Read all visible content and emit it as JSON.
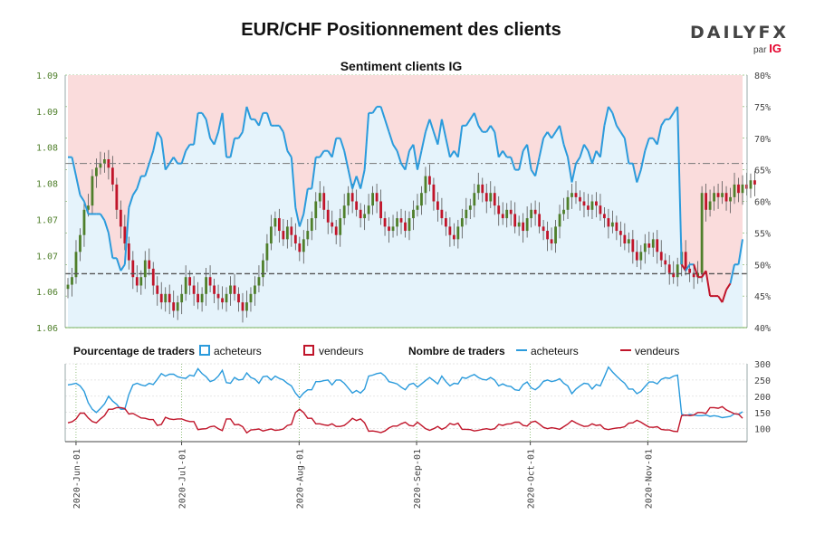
{
  "header": {
    "title": "EUR/CHF Positionnement des clients",
    "brand": "DAILYFX",
    "brand_sub": "par",
    "brand_ig": "IG"
  },
  "legend": {
    "pct_label": "Pourcentage de traders",
    "count_label": "Nombre de traders",
    "buyers": "acheteurs",
    "sellers": "vendeurs"
  },
  "colors": {
    "buyers": "#2b9bdc",
    "sellers": "#c0152a",
    "buy_fill": "#e5f3fb",
    "sell_fill": "#fadcdc",
    "candle_up": "#4f7f2b",
    "candle_down": "#c0152a",
    "grid": "#4f9a2b"
  },
  "chart_data": [
    {
      "type": "candlestick+area",
      "title": "Sentiment clients IG",
      "left_axis_ticks": [
        "1.06",
        "1.06",
        "1.07",
        "1.07",
        "1.08",
        "1.08",
        "1.09",
        "1.09"
      ],
      "left_ylim": [
        1.06,
        1.09
      ],
      "right_axis_ticks": [
        "40%",
        "45%",
        "50%",
        "55%",
        "60%",
        "65%",
        "70%",
        "75%",
        "80%"
      ],
      "right_ylim": [
        40,
        80
      ],
      "x_ticks": [
        "2020-Jun-01",
        "2020-Jul-01",
        "2020-Aug-01",
        "2020-Sep-01",
        "2020-Oct-01",
        "2020-Nov-01"
      ],
      "x_range": [
        "2020-May-30",
        "2020-Nov-25"
      ],
      "reference_lines": {
        "price": 1.0664,
        "percent": 66
      },
      "price_close": [
        1.0651,
        1.066,
        1.069,
        1.071,
        1.074,
        1.0745,
        1.078,
        1.079,
        1.0795,
        1.08,
        1.079,
        1.077,
        1.074,
        1.072,
        1.07,
        1.068,
        1.066,
        1.065,
        1.066,
        1.068,
        1.067,
        1.065,
        1.064,
        1.063,
        1.064,
        1.063,
        1.062,
        1.063,
        1.064,
        1.066,
        1.065,
        1.064,
        1.063,
        1.064,
        1.066,
        1.065,
        1.064,
        1.0635,
        1.063,
        1.064,
        1.065,
        1.064,
        1.063,
        1.062,
        1.063,
        1.064,
        1.065,
        1.066,
        1.068,
        1.07,
        1.072,
        1.073,
        1.0715,
        1.0705,
        1.072,
        1.071,
        1.07,
        1.069,
        1.0705,
        1.0715,
        1.073,
        1.075,
        1.076,
        1.074,
        1.0725,
        1.072,
        1.071,
        1.073,
        1.0745,
        1.076,
        1.075,
        1.074,
        1.073,
        1.0735,
        1.0745,
        1.076,
        1.075,
        1.073,
        1.072,
        1.0715,
        1.072,
        1.073,
        1.0725,
        1.0715,
        1.073,
        1.074,
        1.0745,
        1.076,
        1.078,
        1.077,
        1.075,
        1.074,
        1.073,
        1.072,
        1.071,
        1.0705,
        1.072,
        1.073,
        1.074,
        1.0745,
        1.076,
        1.077,
        1.076,
        1.075,
        1.076,
        1.0745,
        1.0735,
        1.073,
        1.074,
        1.0735,
        1.072,
        1.0725,
        1.0715,
        1.073,
        1.074,
        1.0735,
        1.072,
        1.0715,
        1.0705,
        1.07,
        1.072,
        1.0735,
        1.074,
        1.0755,
        1.076,
        1.0755,
        1.075,
        1.0745,
        1.074,
        1.075,
        1.0745,
        1.0735,
        1.073,
        1.072,
        1.0725,
        1.0715,
        1.071,
        1.07,
        1.0705,
        1.069,
        1.068,
        1.069,
        1.07,
        1.0695,
        1.0705,
        1.069,
        1.068,
        1.0675,
        1.0665,
        1.066,
        1.0675,
        1.069,
        1.067,
        1.0665,
        1.066,
        1.0665,
        1.076,
        1.074,
        1.075,
        1.076,
        1.0755,
        1.076,
        1.075,
        1.0755,
        1.077,
        1.076,
        1.077,
        1.0765,
        1.0775,
        1.077
      ],
      "series": [
        {
          "name": "acheteurs",
          "percent": [
            67,
            67,
            64,
            61,
            60,
            58,
            58,
            58,
            58,
            57,
            55,
            51,
            51,
            49,
            50,
            59,
            61,
            62,
            64,
            64,
            66,
            68,
            71,
            70,
            65,
            66,
            67,
            66,
            66,
            68,
            69,
            69,
            74,
            74,
            73,
            70,
            69,
            71,
            74,
            67,
            67,
            70,
            70,
            71,
            75,
            73,
            73,
            72,
            74,
            74,
            72,
            72,
            72,
            71,
            68,
            67,
            59,
            56,
            58,
            62,
            62,
            67,
            67,
            68,
            68,
            67,
            70,
            70,
            68,
            65,
            62,
            64,
            62,
            65,
            74,
            74,
            75,
            75,
            73,
            71,
            69,
            68,
            66,
            65,
            68,
            69,
            65,
            68,
            71,
            73,
            71,
            69,
            73,
            70,
            67,
            68,
            67,
            72,
            72,
            73,
            74,
            72,
            71,
            71,
            72,
            71,
            67,
            68,
            67,
            67,
            65,
            65,
            68,
            69,
            65,
            64,
            67,
            70,
            71,
            70,
            71,
            72,
            69,
            67,
            63,
            66,
            67,
            69,
            68,
            66,
            68,
            67,
            72,
            75,
            74,
            72,
            71,
            70,
            66,
            66,
            63,
            65,
            68,
            70,
            70,
            69,
            72,
            73,
            73,
            74,
            75,
            50,
            49,
            50,
            50,
            48,
            48,
            49,
            45,
            45,
            45,
            44,
            46,
            47,
            50,
            50,
            54
          ]
        },
        {
          "name": "vendeurs"
        }
      ]
    },
    {
      "type": "line",
      "right_axis_ticks": [
        "100",
        "150",
        "200",
        "250",
        "300"
      ],
      "right_ylim": [
        60,
        300
      ],
      "series": [
        {
          "name": "acheteurs",
          "values": [
            235,
            237,
            240,
            232,
            215,
            180,
            160,
            150,
            162,
            176,
            200,
            185,
            175,
            160,
            160,
            205,
            235,
            240,
            235,
            232,
            240,
            236,
            252,
            270,
            262,
            268,
            268,
            260,
            257,
            255,
            265,
            262,
            285,
            270,
            260,
            245,
            250,
            262,
            280,
            242,
            240,
            258,
            250,
            252,
            272,
            258,
            253,
            240,
            260,
            262,
            250,
            262,
            255,
            250,
            240,
            232,
            210,
            195,
            210,
            220,
            220,
            245,
            245,
            248,
            250,
            235,
            250,
            250,
            240,
            225,
            210,
            218,
            210,
            222,
            262,
            265,
            270,
            272,
            262,
            245,
            242,
            238,
            228,
            220,
            236,
            240,
            228,
            238,
            248,
            258,
            248,
            238,
            262,
            245,
            232,
            240,
            238,
            258,
            255,
            262,
            267,
            258,
            252,
            250,
            258,
            250,
            232,
            238,
            232,
            230,
            220,
            218,
            236,
            244,
            226,
            220,
            230,
            246,
            250,
            245,
            248,
            254,
            240,
            232,
            208,
            222,
            232,
            240,
            238,
            222,
            236,
            232,
            260,
            290,
            275,
            262,
            250,
            240,
            222,
            222,
            208,
            215,
            230,
            244,
            244,
            238,
            252,
            257,
            255,
            262,
            265,
            145,
            140,
            144,
            142,
            140,
            140,
            142,
            138,
            140,
            138,
            134,
            136,
            138,
            146,
            144,
            152
          ]
        },
        {
          "name": "vendeurs",
          "values": [
            118,
            121,
            130,
            148,
            148,
            133,
            122,
            118,
            130,
            140,
            160,
            160,
            165,
            165,
            162,
            145,
            147,
            140,
            133,
            132,
            128,
            128,
            110,
            113,
            135,
            130,
            128,
            130,
            130,
            125,
            122,
            122,
            97,
            99,
            100,
            106,
            108,
            100,
            94,
            130,
            130,
            112,
            113,
            106,
            87,
            96,
            97,
            99,
            93,
            96,
            99,
            95,
            96,
            99,
            110,
            113,
            150,
            160,
            150,
            132,
            132,
            115,
            115,
            112,
            110,
            115,
            107,
            107,
            110,
            120,
            132,
            125,
            130,
            118,
            92,
            93,
            91,
            88,
            93,
            102,
            108,
            108,
            115,
            120,
            110,
            108,
            120,
            110,
            100,
            95,
            100,
            107,
            98,
            104,
            116,
            112,
            117,
            98,
            98,
            97,
            93,
            95,
            98,
            100,
            97,
            100,
            113,
            110,
            114,
            115,
            120,
            120,
            110,
            108,
            120,
            123,
            114,
            104,
            100,
            103,
            101,
            98,
            106,
            114,
            125,
            118,
            112,
            107,
            108,
            115,
            110,
            112,
            100,
            97,
            100,
            102,
            103,
            106,
            117,
            118,
            126,
            120,
            112,
            105,
            104,
            106,
            98,
            96,
            96,
            92,
            91,
            140,
            142,
            140,
            142,
            150,
            150,
            147,
            165,
            165,
            163,
            168,
            158,
            152,
            146,
            145,
            132
          ]
        }
      ]
    }
  ]
}
